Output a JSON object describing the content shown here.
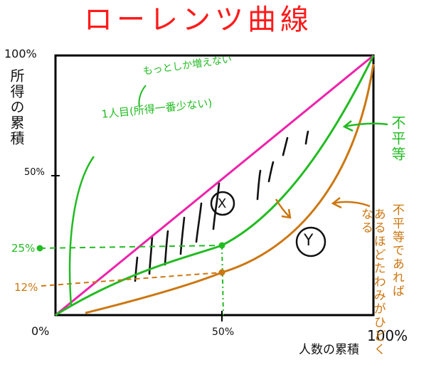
{
  "title": "ローレンツ曲線",
  "axes": {
    "y_label": "所得の累積",
    "x_label": "人数の累積",
    "y_ticks": {
      "t100": "100%",
      "t50": "50%",
      "t25": "25%",
      "t12": "12%"
    },
    "x_ticks": {
      "t0": "0%",
      "t50": "50%",
      "t100": "100%"
    }
  },
  "annotations": {
    "note_top": "もっとしか増えない",
    "note_second": "1人目(所得一番少ない)",
    "equal_label": "不平等",
    "unequal_1": "不平等であれば",
    "unequal_2": "あるほどたわみがひどくなる",
    "mark_x": "X",
    "mark_y": "Y"
  },
  "colors": {
    "title": "#ff1a1a",
    "equality_line": "#ee22aa",
    "green_curve": "#22bb22",
    "orange_curve": "#cc7711",
    "frame": "#000000"
  }
}
